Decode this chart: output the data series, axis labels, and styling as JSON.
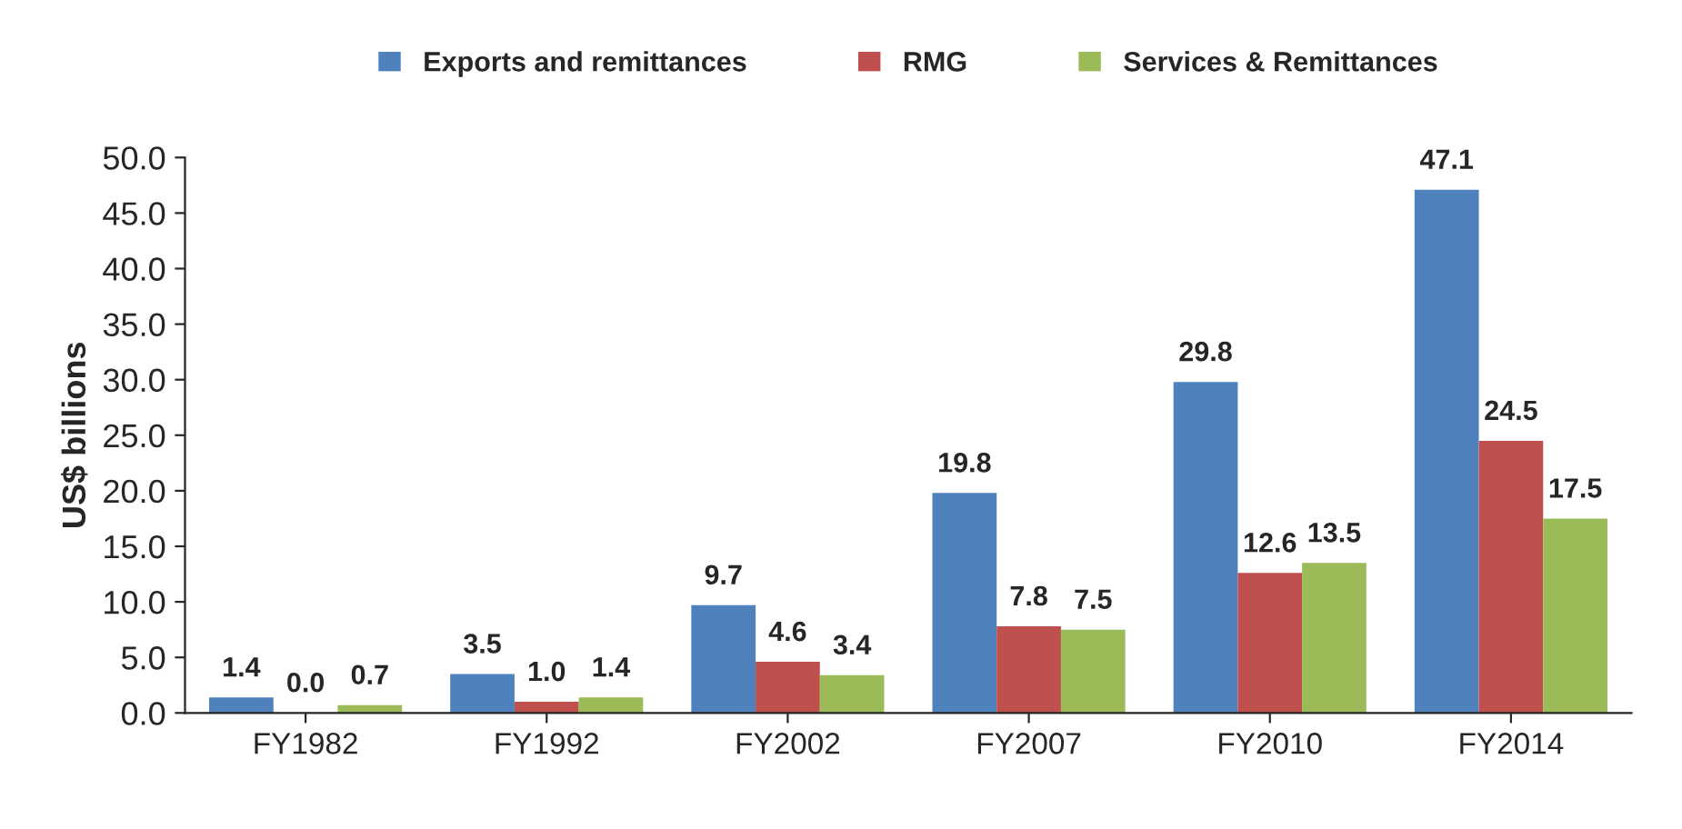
{
  "chart_data": {
    "type": "bar",
    "ylabel": "US$ billions",
    "categories": [
      "FY1982",
      "FY1992",
      "FY2002",
      "FY2007",
      "FY2010",
      "FY2014"
    ],
    "series": [
      {
        "name": "Exports and remittances",
        "color": "#4f81bd",
        "values": [
          1.4,
          3.5,
          9.7,
          19.8,
          29.8,
          47.1
        ],
        "value_labels": [
          "1.4",
          "3.5",
          "9.7",
          "19.8",
          "29.8",
          "47.1"
        ]
      },
      {
        "name": "RMG",
        "color": "#c0504d",
        "values": [
          0.0,
          1.0,
          4.6,
          7.8,
          12.6,
          24.5
        ],
        "value_labels": [
          "0.0",
          "1.0",
          "4.6",
          "7.8",
          "12.6",
          "24.5"
        ]
      },
      {
        "name": "Services & Remittances",
        "color": "#9bbb59",
        "values": [
          0.7,
          1.4,
          3.4,
          7.5,
          13.5,
          17.5
        ],
        "value_labels": [
          "0.7",
          "1.4",
          "3.4",
          "7.5",
          "13.5",
          "17.5"
        ]
      }
    ],
    "ylim": [
      0,
      50
    ],
    "yticks": [
      {
        "value": 0,
        "label": "0.0"
      },
      {
        "value": 5,
        "label": "5.0"
      },
      {
        "value": 10,
        "label": "10.0"
      },
      {
        "value": 15,
        "label": "15.0"
      },
      {
        "value": 20,
        "label": "20.0"
      },
      {
        "value": 25,
        "label": "25.0"
      },
      {
        "value": 30,
        "label": "30.0"
      },
      {
        "value": 35,
        "label": "35.0"
      },
      {
        "value": 40,
        "label": "40.0"
      },
      {
        "value": 45,
        "label": "45.0"
      },
      {
        "value": 50,
        "label": "50.0"
      }
    ],
    "grid": false,
    "legend": "top"
  }
}
